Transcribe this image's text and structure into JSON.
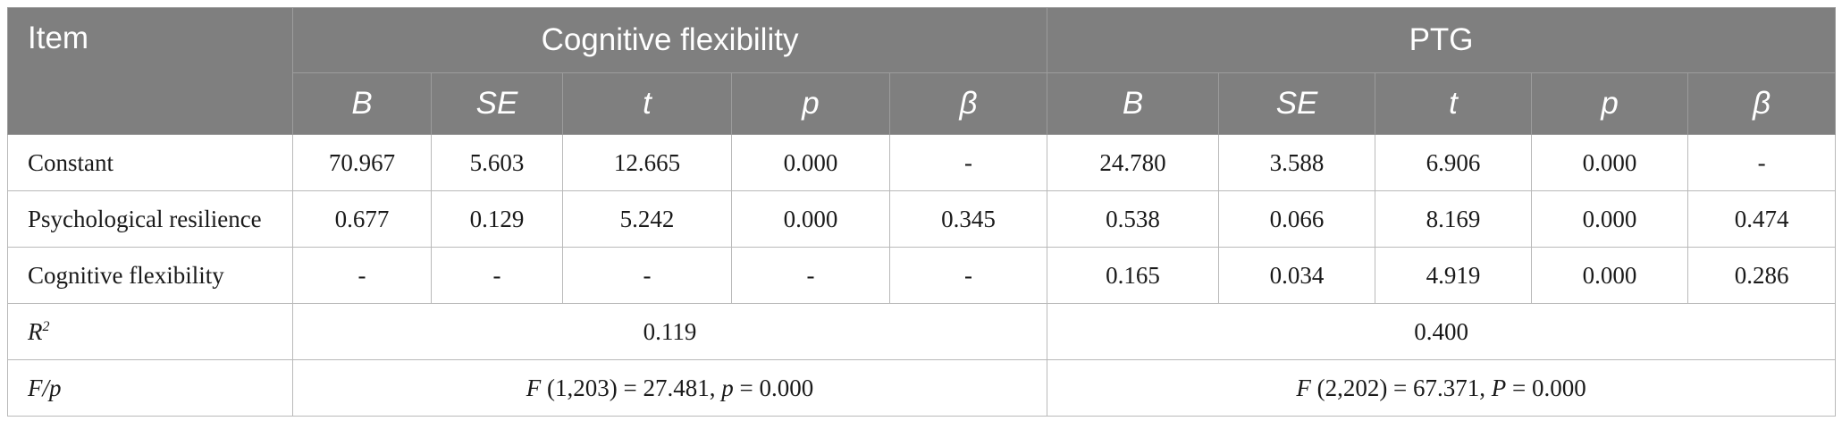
{
  "header": {
    "item_label": "Item",
    "group1": "Cognitive flexibility",
    "group2": "PTG",
    "sub_columns": [
      "B",
      "SE",
      "t",
      "p",
      "β"
    ]
  },
  "rows": [
    {
      "label": "Constant",
      "cells": [
        "70.967",
        "5.603",
        "12.665",
        "0.000",
        "-",
        "24.780",
        "3.588",
        "6.906",
        "0.000",
        "-"
      ]
    },
    {
      "label": "Psychological resilience",
      "cells": [
        "0.677",
        "0.129",
        "5.242",
        "0.000",
        "0.345",
        "0.538",
        "0.066",
        "8.169",
        "0.000",
        "0.474"
      ]
    },
    {
      "label": "Cognitive flexibility",
      "cells": [
        "-",
        "-",
        "-",
        "-",
        "-",
        "0.165",
        "0.034",
        "4.919",
        "0.000",
        "0.286"
      ]
    }
  ],
  "r2_row": {
    "label_main": "R",
    "label_sup": "2",
    "group1": "0.119",
    "group2": "0.400"
  },
  "fp_row": {
    "label": "F/p",
    "group1": {
      "f_sym": "F",
      "f_args": " (1,203) = 27.481, ",
      "p_sym": "p",
      "p_val": " = 0.000"
    },
    "group2": {
      "f_sym": "F",
      "f_args": " (2,202) = 67.371, ",
      "p_sym": "P",
      "p_val": " = 0.000"
    }
  }
}
